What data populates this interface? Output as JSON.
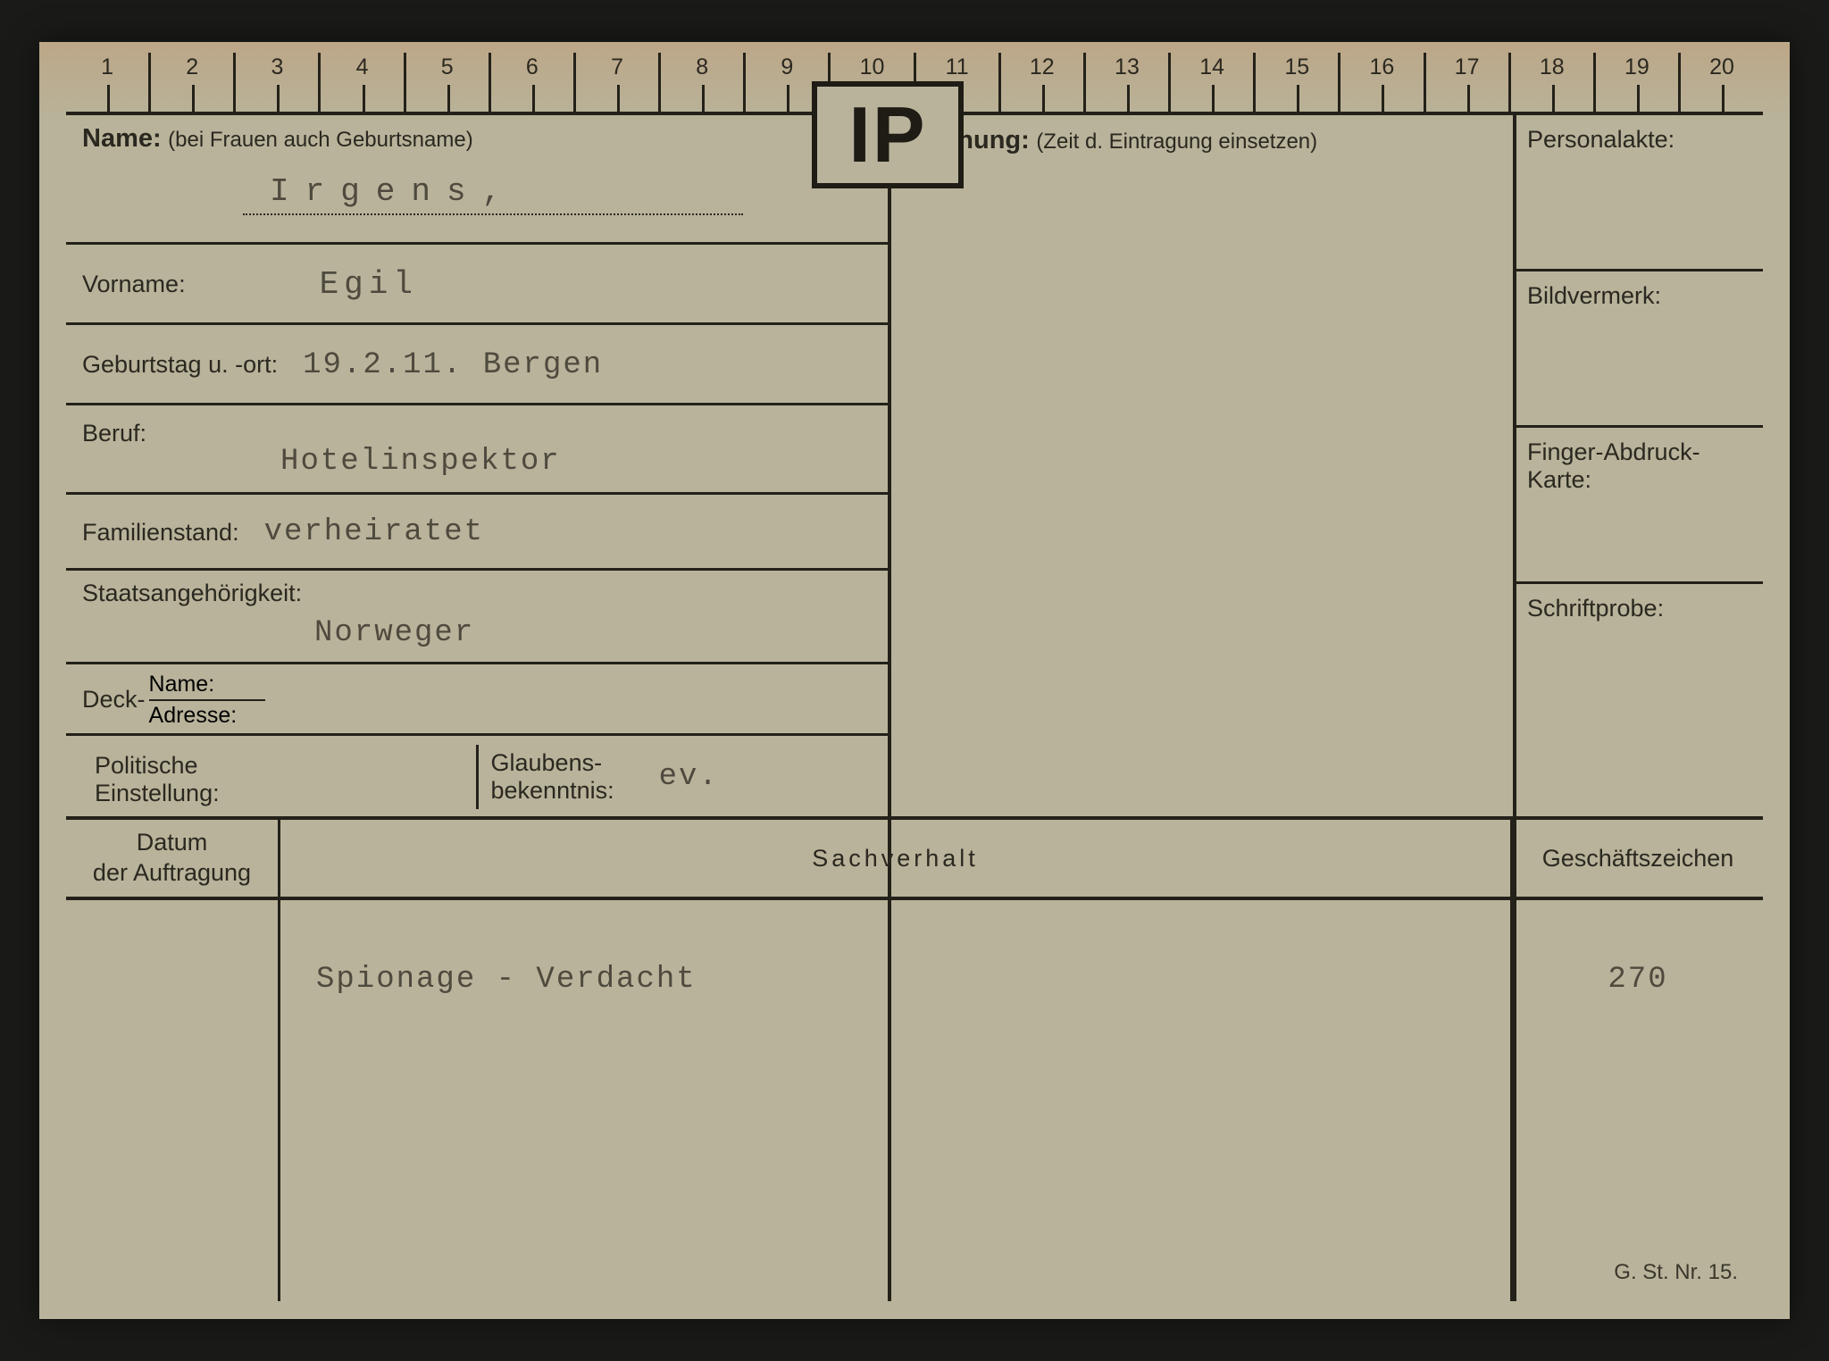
{
  "ruler": {
    "start": 1,
    "end": 20
  },
  "stamp": "IP",
  "left": {
    "name_label": "Name:",
    "name_hint": "(bei Frauen auch Geburtsname)",
    "name_value": "Irgens,",
    "vorname_label": "Vorname:",
    "vorname_value": "Egil",
    "geb_label": "Geburtstag u. -ort:",
    "geb_value": "19.2.11.  Bergen",
    "beruf_label": "Beruf:",
    "beruf_value": "Hotelinspektor",
    "fam_label": "Familienstand:",
    "fam_value": "verheiratet",
    "staat_label": "Staatsangehörigkeit:",
    "staat_value": "Norweger",
    "deck_label": "Deck-",
    "deck_name": "Name:",
    "deck_adr": "Adresse:",
    "pol_label1": "Politische",
    "pol_label2": "Einstellung:",
    "glaub_label1": "Glaubens-",
    "glaub_label2": "bekenntnis:",
    "glaub_value": "ev."
  },
  "mid": {
    "wohnung_label": "Wohnung:",
    "wohnung_hint": "(Zeit d. Eintragung einsetzen)"
  },
  "right": {
    "r1": "Personalakte:",
    "r2": "Bildvermerk:",
    "r3_a": "Finger-Abdruck-",
    "r3_b": "Karte:",
    "r4": "Schriftprobe:"
  },
  "bottom": {
    "h1a": "Datum",
    "h1b": "der Auftragung",
    "h2": "Sachverhalt",
    "h3": "Geschäftszeichen",
    "sach_value": "Spionage - Verdacht",
    "gz_value": "270"
  },
  "form_no": "G. St. Nr. 15.",
  "colors": {
    "paper": "#b8b39a",
    "ink": "#232119",
    "typed": "#4f4a3e",
    "page_bg": "#1a1a18"
  }
}
